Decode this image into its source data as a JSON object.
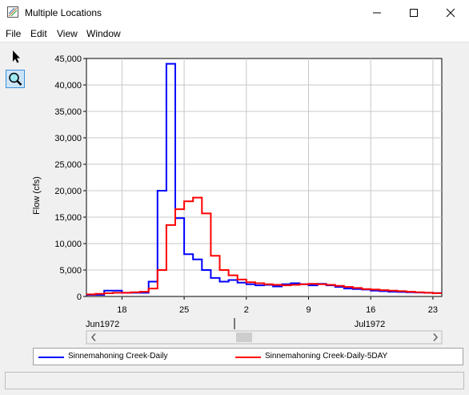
{
  "window": {
    "title": "Multiple Locations"
  },
  "menu": {
    "items": [
      "File",
      "Edit",
      "View",
      "Window"
    ]
  },
  "toolbar": {
    "tools": [
      {
        "name": "select-arrow-icon",
        "active": false
      },
      {
        "name": "zoom-magnifier-icon",
        "active": true
      }
    ]
  },
  "chart_data": {
    "type": "line",
    "step": true,
    "title": "",
    "ylabel": "Flow (cfs)",
    "xlabel": "",
    "ylim": [
      0,
      45000
    ],
    "y_ticks": [
      0,
      5000,
      10000,
      15000,
      20000,
      25000,
      30000,
      35000,
      40000,
      45000
    ],
    "y_tick_labels": [
      "0",
      "5,000",
      "10,000",
      "15,000",
      "20,000",
      "25,000",
      "30,000",
      "35,000",
      "40,000",
      "45,000"
    ],
    "x_tick_labels": [
      "18",
      "25",
      "2",
      "9",
      "16",
      "23"
    ],
    "x_month_labels": [
      "Jun1972",
      "Jul1972"
    ],
    "grid": true,
    "legend_position": "bottom",
    "x_start": "1972-06-14",
    "x_end": "1972-07-24",
    "x_tick_dates": [
      "1972-06-18",
      "1972-06-25",
      "1972-07-02",
      "1972-07-09",
      "1972-07-16",
      "1972-07-23"
    ],
    "x_month_dates": [
      "1972-06-14",
      "1972-07-01"
    ],
    "series": [
      {
        "name": "Sinnemahoning Creek-Daily",
        "color": "#0000ff",
        "x": [
          "1972-06-14",
          "1972-06-15",
          "1972-06-16",
          "1972-06-17",
          "1972-06-18",
          "1972-06-19",
          "1972-06-20",
          "1972-06-21",
          "1972-06-22",
          "1972-06-23",
          "1972-06-24",
          "1972-06-25",
          "1972-06-26",
          "1972-06-27",
          "1972-06-28",
          "1972-06-29",
          "1972-06-30",
          "1972-07-01",
          "1972-07-02",
          "1972-07-03",
          "1972-07-04",
          "1972-07-05",
          "1972-07-06",
          "1972-07-07",
          "1972-07-08",
          "1972-07-09",
          "1972-07-10",
          "1972-07-11",
          "1972-07-12",
          "1972-07-13",
          "1972-07-14",
          "1972-07-15",
          "1972-07-16",
          "1972-07-17",
          "1972-07-18",
          "1972-07-19",
          "1972-07-20",
          "1972-07-21",
          "1972-07-22",
          "1972-07-23"
        ],
        "y": [
          300,
          300,
          1100,
          1100,
          700,
          700,
          700,
          2800,
          20000,
          44000,
          14800,
          8000,
          7000,
          5000,
          3500,
          2800,
          3100,
          2600,
          2300,
          2100,
          2200,
          1900,
          2300,
          2500,
          2300,
          2100,
          2400,
          2100,
          1800,
          1500,
          1400,
          1300,
          1100,
          1000,
          900,
          850,
          800,
          750,
          700,
          650
        ]
      },
      {
        "name": "Sinnemahoning Creek-Daily-5DAY",
        "color": "#ff0000",
        "x": [
          "1972-06-14",
          "1972-06-15",
          "1972-06-16",
          "1972-06-17",
          "1972-06-18",
          "1972-06-19",
          "1972-06-20",
          "1972-06-21",
          "1972-06-22",
          "1972-06-23",
          "1972-06-24",
          "1972-06-25",
          "1972-06-26",
          "1972-06-27",
          "1972-06-28",
          "1972-06-29",
          "1972-06-30",
          "1972-07-01",
          "1972-07-02",
          "1972-07-03",
          "1972-07-04",
          "1972-07-05",
          "1972-07-06",
          "1972-07-07",
          "1972-07-08",
          "1972-07-09",
          "1972-07-10",
          "1972-07-11",
          "1972-07-12",
          "1972-07-13",
          "1972-07-14",
          "1972-07-15",
          "1972-07-16",
          "1972-07-17",
          "1972-07-18",
          "1972-07-19",
          "1972-07-20",
          "1972-07-21",
          "1972-07-22",
          "1972-07-23"
        ],
        "y": [
          400,
          500,
          600,
          700,
          700,
          800,
          900,
          1500,
          5000,
          13500,
          16500,
          18000,
          18700,
          15700,
          7700,
          5000,
          4000,
          3200,
          2700,
          2500,
          2300,
          2200,
          2100,
          2200,
          2300,
          2400,
          2300,
          2200,
          2000,
          1800,
          1600,
          1400,
          1300,
          1200,
          1100,
          1000,
          900,
          800,
          700,
          600
        ]
      }
    ]
  },
  "legend": {
    "items": [
      {
        "label": "Sinnemahoning Creek-Daily",
        "color": "#0000ff"
      },
      {
        "label": "Sinnemahoning Creek-Daily-5DAY",
        "color": "#ff0000"
      }
    ]
  },
  "statusbar": {
    "text": ""
  }
}
